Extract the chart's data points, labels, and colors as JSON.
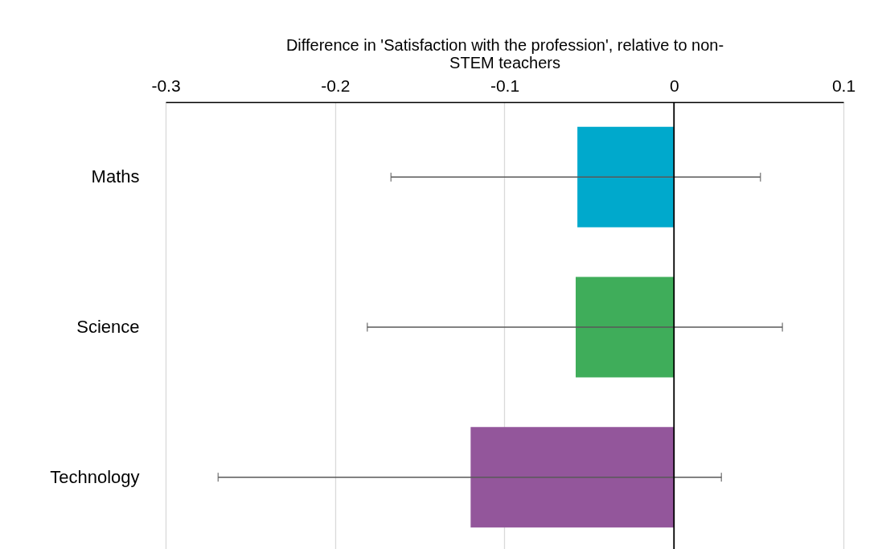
{
  "chart_data": {
    "type": "bar",
    "orientation": "horizontal",
    "xlabel": "Difference in 'Satisfaction with the profession', relative to non-STEM teachers",
    "categories": [
      "Maths",
      "Science",
      "Technology"
    ],
    "values": [
      -0.057,
      -0.058,
      -0.12
    ],
    "colors": [
      "#00a9cc",
      "#3fad5a",
      "#93569b"
    ],
    "errors": [
      [
        -0.167,
        0.051
      ],
      [
        -0.181,
        0.064
      ],
      [
        -0.269,
        0.028
      ]
    ],
    "xlim": [
      -0.3,
      0.1
    ],
    "xticks": [
      -0.3,
      -0.2,
      -0.1,
      0,
      0.1
    ],
    "grid": "x",
    "ref_lines": [
      {
        "axis": "x",
        "value": 0,
        "color": "#000000"
      }
    ]
  }
}
